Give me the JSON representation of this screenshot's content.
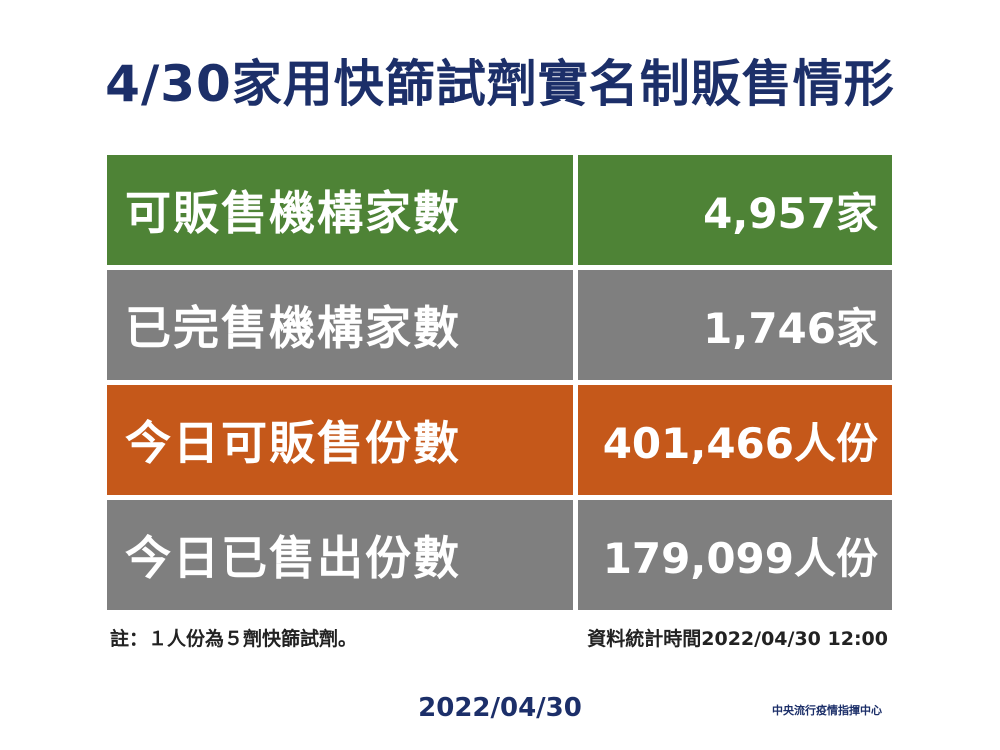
{
  "title": "4/30家用快篩試劑實名制販售情形",
  "colors": {
    "title": "#1c2f69",
    "green": "#4e8336",
    "gray": "#7f7f7f",
    "orange": "#c5581a"
  },
  "rows": [
    {
      "label": "可販售機構家數",
      "value": "4,957家",
      "color": "green"
    },
    {
      "label": "已完售機構家數",
      "value": "1,746家",
      "color": "gray"
    },
    {
      "label": "今日可販售份數",
      "value": "401,466人份",
      "color": "orange"
    },
    {
      "label": "今日已售出份數",
      "value": "179,099人份",
      "color": "gray"
    }
  ],
  "note": "註：１人份為５劑快篩試劑。",
  "stat_time": "資料統計時間2022/04/30  12:00",
  "footer_date": "2022/04/30",
  "org": "中央流行疫情指揮中心"
}
